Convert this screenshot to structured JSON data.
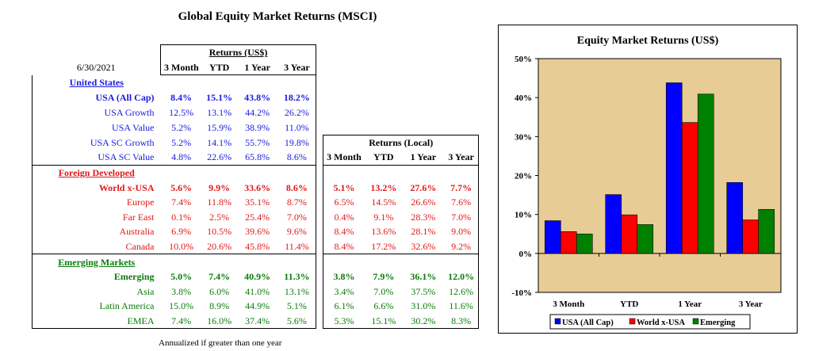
{
  "title": "Global Equity Market Returns (MSCI)",
  "as_of": "6/30/2021",
  "usd_group_label": "Returns (US$)",
  "local_group_label": "Returns (Local)",
  "periods": [
    "3 Month",
    "YTD",
    "1 Year",
    "3 Year"
  ],
  "footnote": "Annualized if greater than one year",
  "sections": [
    {
      "name": "United States",
      "color": "#1a1adf",
      "rows": [
        {
          "label": "USA (All Cap)",
          "bold": true,
          "usd": [
            "8.4%",
            "15.1%",
            "43.8%",
            "18.2%"
          ],
          "local": null
        },
        {
          "label": "USA Growth",
          "bold": false,
          "usd": [
            "12.5%",
            "13.1%",
            "44.2%",
            "26.2%"
          ],
          "local": null
        },
        {
          "label": "USA Value",
          "bold": false,
          "usd": [
            "5.2%",
            "15.9%",
            "38.9%",
            "11.0%"
          ],
          "local": null
        },
        {
          "label": "USA SC Growth",
          "bold": false,
          "usd": [
            "5.2%",
            "14.1%",
            "55.7%",
            "19.8%"
          ],
          "local": null
        },
        {
          "label": "USA SC Value",
          "bold": false,
          "usd": [
            "4.8%",
            "22.6%",
            "65.8%",
            "8.6%"
          ],
          "local": null
        }
      ]
    },
    {
      "name": "Foreign Developed",
      "color": "#e01919",
      "rows": [
        {
          "label": "World x-USA",
          "bold": true,
          "usd": [
            "5.6%",
            "9.9%",
            "33.6%",
            "8.6%"
          ],
          "local": [
            "5.1%",
            "13.2%",
            "27.6%",
            "7.7%"
          ]
        },
        {
          "label": "Europe",
          "bold": false,
          "usd": [
            "7.4%",
            "11.8%",
            "35.1%",
            "8.7%"
          ],
          "local": [
            "6.5%",
            "14.5%",
            "26.6%",
            "7.6%"
          ]
        },
        {
          "label": "Far East",
          "bold": false,
          "usd": [
            "0.1%",
            "2.5%",
            "25.4%",
            "7.0%"
          ],
          "local": [
            "0.4%",
            "9.1%",
            "28.3%",
            "7.0%"
          ]
        },
        {
          "label": "Australia",
          "bold": false,
          "usd": [
            "6.9%",
            "10.5%",
            "39.6%",
            "9.6%"
          ],
          "local": [
            "8.4%",
            "13.6%",
            "28.1%",
            "9.0%"
          ]
        },
        {
          "label": "Canada",
          "bold": false,
          "usd": [
            "10.0%",
            "20.6%",
            "45.8%",
            "11.4%"
          ],
          "local": [
            "8.4%",
            "17.2%",
            "32.6%",
            "9.2%"
          ]
        }
      ]
    },
    {
      "name": "Emerging Markets",
      "color": "#0a7d0a",
      "rows": [
        {
          "label": "Emerging",
          "bold": true,
          "usd": [
            "5.0%",
            "7.4%",
            "40.9%",
            "11.3%"
          ],
          "local": [
            "3.8%",
            "7.9%",
            "36.1%",
            "12.0%"
          ]
        },
        {
          "label": "Asia",
          "bold": false,
          "usd": [
            "3.8%",
            "6.0%",
            "41.0%",
            "13.1%"
          ],
          "local": [
            "3.4%",
            "7.0%",
            "37.5%",
            "12.6%"
          ]
        },
        {
          "label": "Latin America",
          "bold": false,
          "usd": [
            "15.0%",
            "8.9%",
            "44.9%",
            "5.1%"
          ],
          "local": [
            "6.1%",
            "6.6%",
            "31.0%",
            "11.6%"
          ]
        },
        {
          "label": "EMEA",
          "bold": false,
          "usd": [
            "7.4%",
            "16.0%",
            "37.4%",
            "5.6%"
          ],
          "local": [
            "5.3%",
            "15.1%",
            "30.2%",
            "8.3%"
          ]
        }
      ]
    }
  ],
  "chart_data": {
    "type": "bar",
    "title": "Equity Market Returns (US$)",
    "categories": [
      "3 Month",
      "YTD",
      "1 Year",
      "3 Year"
    ],
    "series": [
      {
        "name": "USA (All Cap)",
        "color": "#0000ff",
        "values": [
          8.4,
          15.1,
          43.8,
          18.2
        ]
      },
      {
        "name": "World x-USA",
        "color": "#ff0000",
        "values": [
          5.6,
          9.9,
          33.6,
          8.6
        ]
      },
      {
        "name": "Emerging",
        "color": "#008000",
        "values": [
          5.0,
          7.4,
          40.9,
          11.3
        ]
      }
    ],
    "ylim": [
      -10,
      50
    ],
    "yticks": [
      -10,
      0,
      10,
      20,
      30,
      40,
      50
    ],
    "ytick_labels": [
      "-10%",
      "0%",
      "10%",
      "20%",
      "30%",
      "40%",
      "50%"
    ],
    "plot_background": "#e8cc96",
    "grid": false,
    "legend": "bottom"
  }
}
